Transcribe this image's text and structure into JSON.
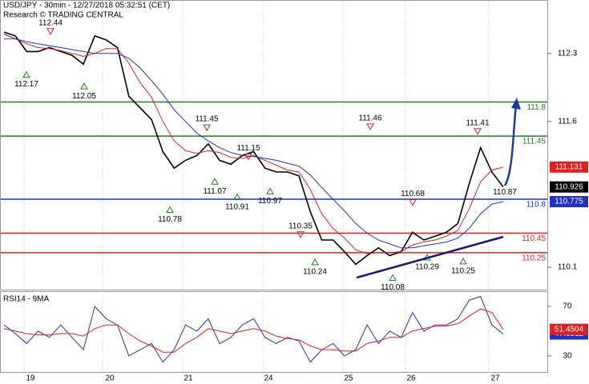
{
  "header": {
    "title": "USD/JPY - 30min - 12/27/2018 05:32:51 (CET)",
    "credit": "Research © TRADING CENTRAL"
  },
  "days": [
    "19",
    "20",
    "21",
    "24",
    "25",
    "26",
    "27"
  ],
  "chart_data": [
    {
      "type": "line",
      "ylim": [
        109.87,
        112.85
      ],
      "yticks": [
        112.3,
        111.6,
        110.1
      ],
      "series": [
        {
          "color": "#000000",
          "values": [
            112.52,
            112.48,
            112.32,
            112.32,
            112.36,
            112.32,
            112.28,
            112.19,
            112.48,
            112.44,
            112.36,
            111.86,
            111.74,
            111.62,
            111.29,
            111.12,
            111.2,
            111.25,
            111.37,
            111.2,
            111.16,
            111.25,
            111.29,
            111.12,
            111.08,
            111.08,
            111.04,
            110.67,
            110.38,
            110.38,
            110.26,
            110.13,
            110.22,
            110.3,
            110.22,
            110.26,
            110.46,
            110.38,
            110.42,
            110.46,
            110.55,
            110.96,
            111.33,
            111.08,
            110.926
          ]
        },
        {
          "color": "#e02020",
          "values": [
            112.45,
            112.45,
            112.4,
            112.36,
            112.35,
            112.33,
            112.3,
            112.27,
            112.3,
            112.35,
            112.35,
            112.2,
            112.0,
            111.85,
            111.6,
            111.4,
            111.3,
            111.27,
            111.3,
            111.28,
            111.23,
            111.22,
            111.25,
            111.2,
            111.15,
            111.1,
            111.08,
            110.9,
            110.65,
            110.5,
            110.4,
            110.28,
            110.24,
            110.25,
            110.25,
            110.26,
            110.33,
            110.36,
            110.38,
            110.42,
            110.48,
            110.7,
            110.98,
            111.1,
            111.131
          ]
        },
        {
          "color": "#2030c0",
          "values": [
            112.5,
            112.45,
            112.42,
            112.4,
            112.38,
            112.36,
            112.34,
            112.32,
            112.3,
            112.3,
            112.3,
            112.25,
            112.15,
            112.02,
            111.88,
            111.72,
            111.6,
            111.48,
            111.4,
            111.33,
            111.28,
            111.25,
            111.24,
            111.22,
            111.2,
            111.17,
            111.14,
            111.05,
            110.92,
            110.8,
            110.68,
            110.55,
            110.45,
            110.38,
            110.34,
            110.3,
            110.3,
            110.32,
            110.34,
            110.36,
            110.4,
            110.5,
            110.65,
            110.75,
            110.775
          ]
        }
      ],
      "levels": [
        {
          "value": 111.8,
          "color": "#208020"
        },
        {
          "value": 111.45,
          "color": "#208020"
        },
        {
          "value": 110.8,
          "color": "#2030c0"
        },
        {
          "value": 110.45,
          "color": "#e02020"
        },
        {
          "value": 110.25,
          "color": "#e02020"
        }
      ],
      "highs": [
        112.44,
        111.46,
        111.45,
        111.15,
        110.35,
        110.68,
        111.41
      ],
      "lows": [
        112.17,
        112.05,
        110.78,
        111.07,
        110.91,
        110.97,
        110.24,
        110.08,
        110.29,
        110.25
      ],
      "notes": [
        110.87
      ]
    },
    {
      "type": "line",
      "title": "RSI14 - 9MA",
      "ylim": [
        17,
        81.6
      ],
      "yticks": [
        70,
        30
      ],
      "series": [
        {
          "color": "#2030c0",
          "values": [
            55,
            48,
            40,
            50,
            45,
            55,
            45,
            35,
            70,
            60,
            55,
            30,
            35,
            40,
            25,
            35,
            55,
            50,
            60,
            40,
            45,
            55,
            60,
            45,
            40,
            45,
            42,
            25,
            35,
            40,
            30,
            35,
            55,
            40,
            50,
            45,
            65,
            50,
            55,
            55,
            60,
            75,
            78,
            55,
            47.6812
          ]
        },
        {
          "color": "#e02020",
          "values": [
            52,
            50,
            48,
            47,
            47,
            48,
            48,
            46,
            52,
            55,
            55,
            48,
            42,
            38,
            33,
            33,
            40,
            45,
            52,
            50,
            48,
            50,
            52,
            50,
            46,
            44,
            43,
            38,
            35,
            35,
            34,
            34,
            40,
            42,
            45,
            45,
            50,
            52,
            54,
            54,
            56,
            62,
            68,
            65,
            51.4504
          ]
        }
      ]
    }
  ]
}
